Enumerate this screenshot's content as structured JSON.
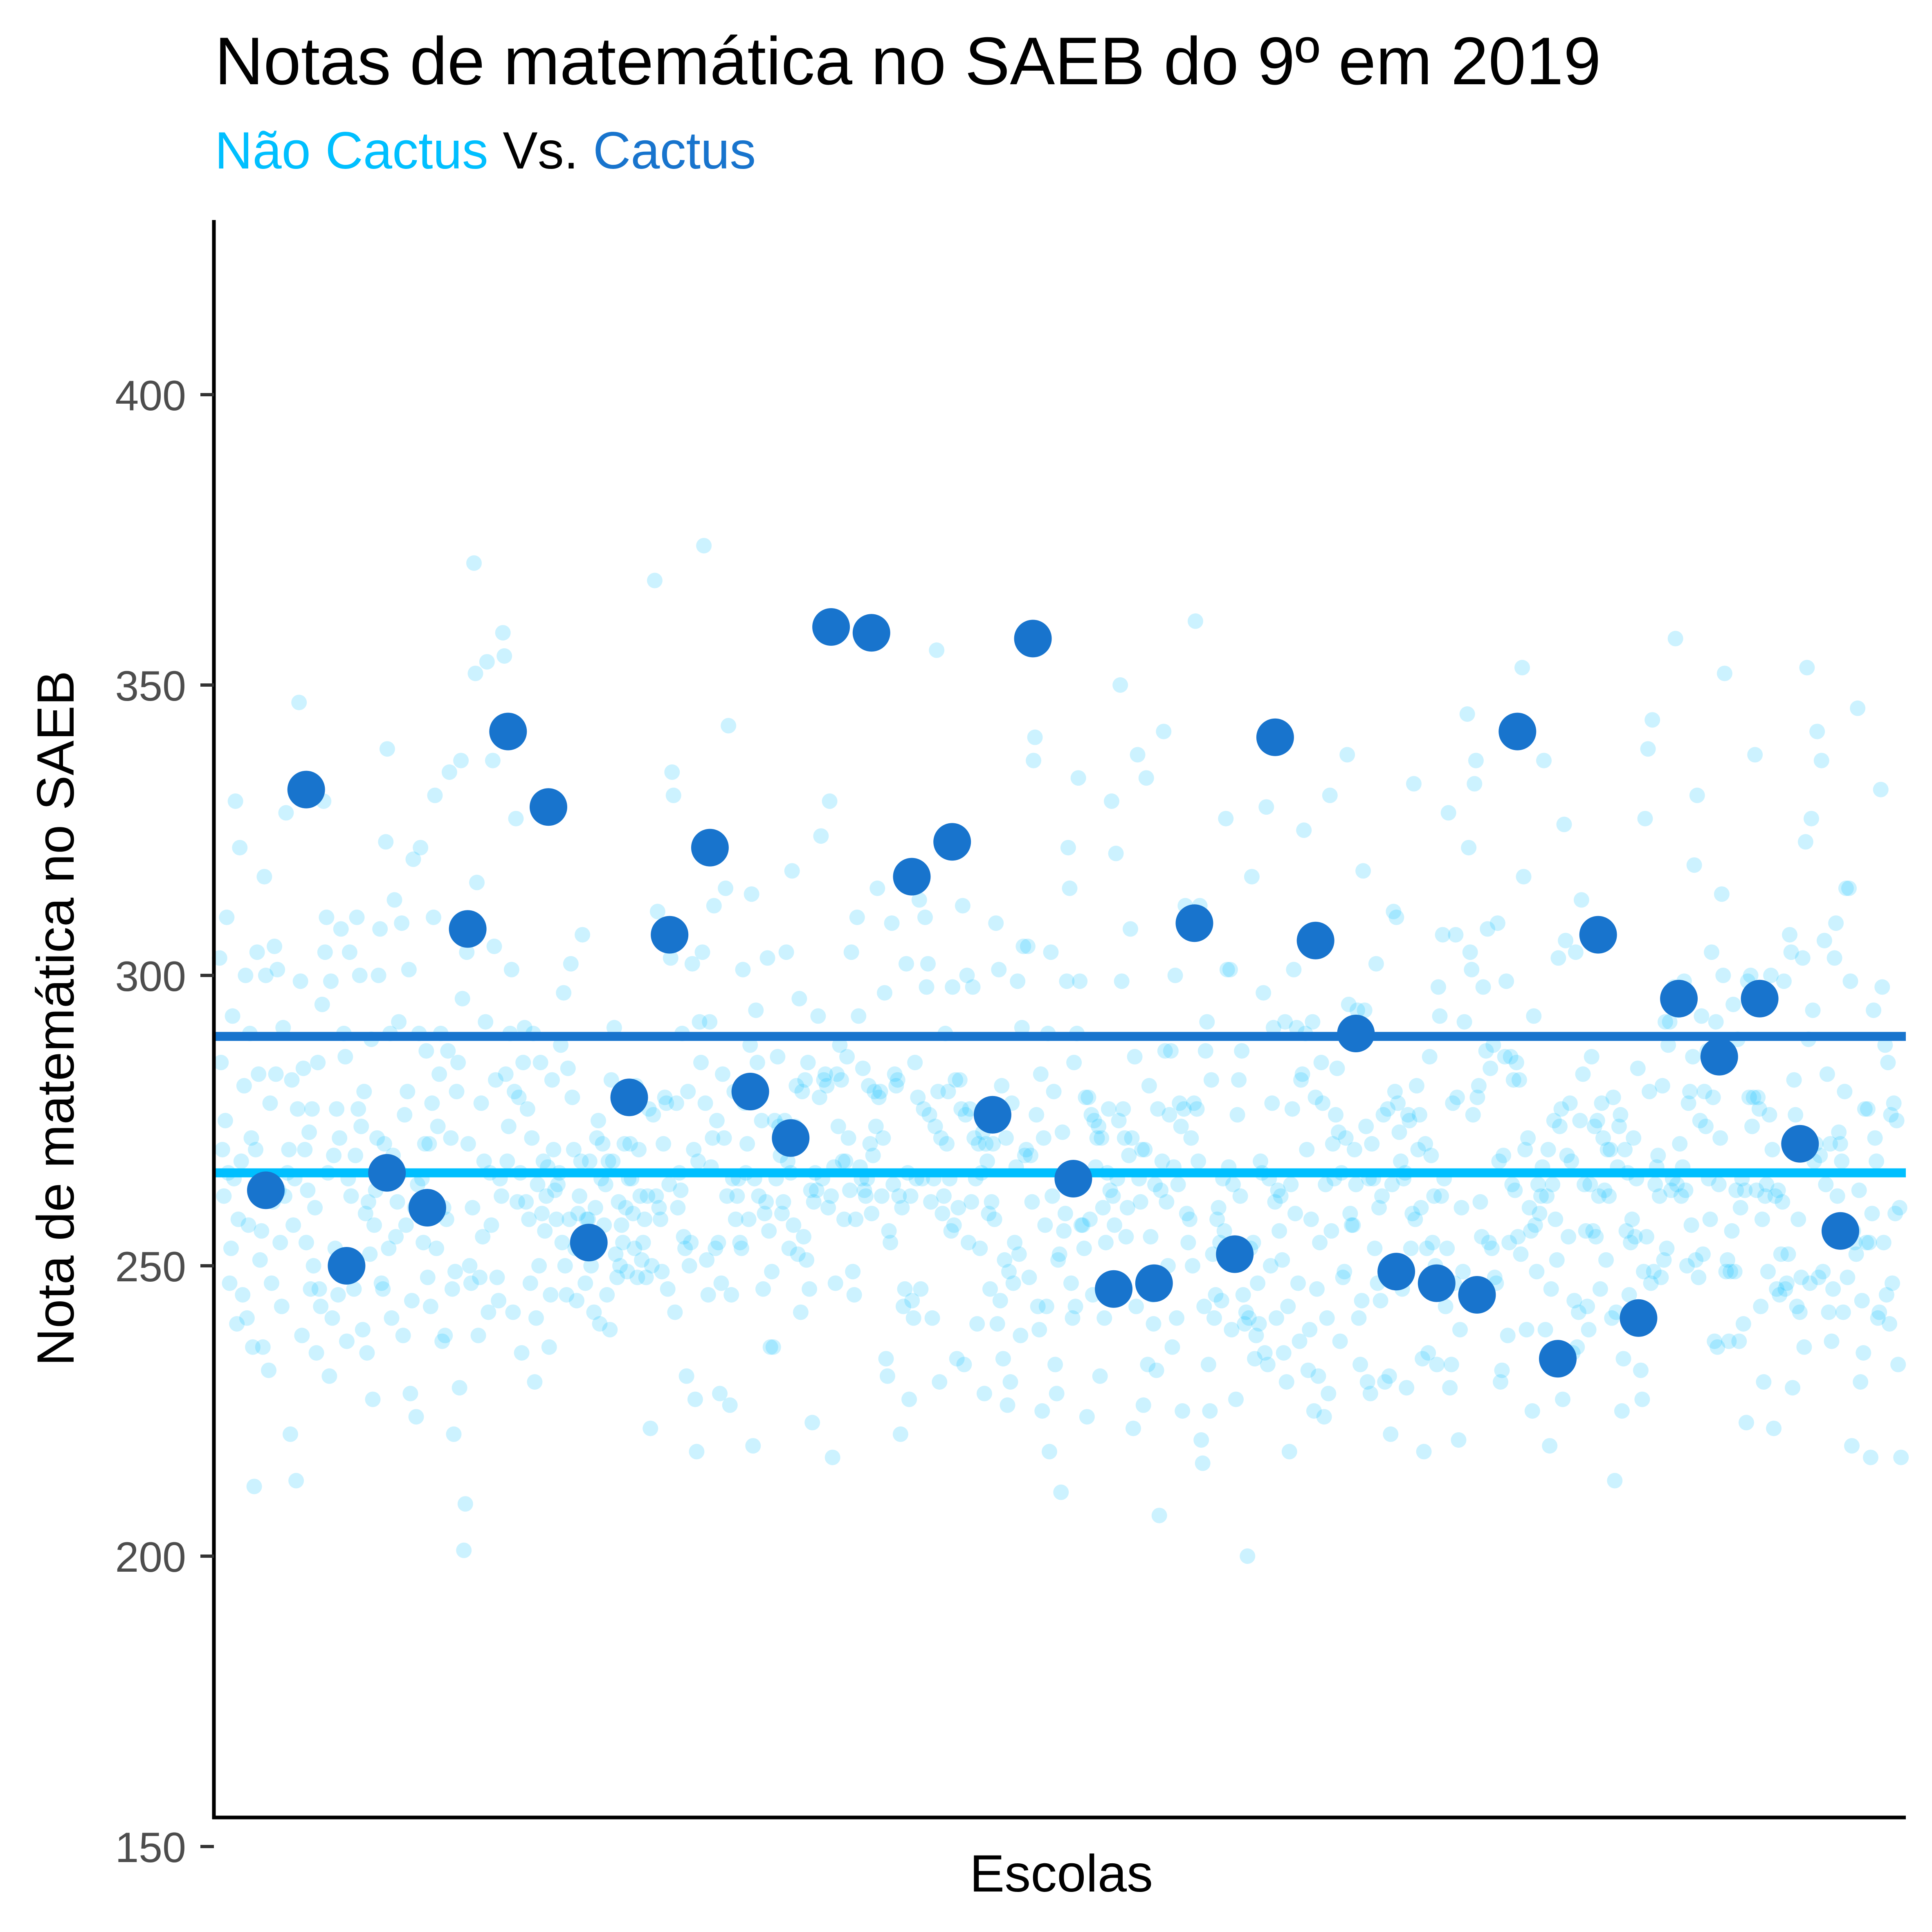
{
  "chart_data": {
    "type": "scatter",
    "title": "Notas de matemática no SAEB do 9º em 2019",
    "subtitle": {
      "part1": "Não Cactus",
      "part2": "Vs.",
      "part3": "Cactus"
    },
    "xlabel": "Escolas",
    "ylabel": "Nota de matemática no SAEB",
    "ylim": [
      136,
      412
    ],
    "yticks": [
      "150",
      "200",
      "250",
      "300",
      "350",
      "400"
    ],
    "grid": false,
    "legend": "none",
    "colors": {
      "nao_cactus": "#00BFFF",
      "cactus": "#1874CD",
      "subtitle_mid": "#000000"
    },
    "series": [
      {
        "name": "Não Cactus",
        "mean": 266,
        "values": [
          303,
          285,
          270,
          262,
          275,
          310,
          266,
          247,
          253,
          293,
          265,
          330,
          240,
          258,
          322,
          268,
          245,
          281,
          300,
          241,
          257,
          290,
          272,
          236,
          212,
          270,
          304,
          283,
          251,
          256,
          236,
          317,
          300,
          264,
          232,
          278,
          247,
          261,
          305,
          283,
          301,
          263,
          254,
          243,
          291,
          262,
          328,
          266,
          270,
          221,
          282,
          257,
          265,
          213,
          277,
          347,
          299,
          238,
          284,
          270,
          254,
          263,
          273,
          246,
          277,
          250,
          260,
          235,
          285,
          246,
          243,
          295,
          330,
          304,
          310,
          266,
          231,
          299,
          241,
          269,
          253,
          277,
          245,
          272,
          308,
          250,
          290,
          286,
          237,
          265,
          304,
          262,
          251,
          246,
          269,
          310,
          277,
          300,
          274,
          239,
          280,
          259,
          235,
          261,
          252,
          289,
          227,
          257,
          263,
          272,
          300,
          308,
          247,
          246,
          271,
          323,
          339,
          253,
          290,
          241,
          269,
          313,
          255,
          261,
          292,
          266,
          309,
          238,
          276,
          257,
          280,
          301,
          228,
          244,
          320,
          260,
          224,
          264,
          290,
          322,
          265,
          254,
          271,
          287,
          248,
          271,
          243,
          278,
          310,
          331,
          253,
          274,
          283,
          290,
          237,
          260,
          238,
          258,
          287,
          335,
          272,
          246,
          221,
          249,
          280,
          285,
          229,
          337,
          296,
          201,
          209,
          304,
          271,
          250,
          247,
          260,
          371,
          352,
          316,
          238,
          248,
          278,
          255,
          268,
          292,
          354,
          242,
          266,
          257,
          337,
          305,
          282,
          248,
          244,
          265,
          262,
          359,
          355,
          283,
          268,
          274,
          290,
          301,
          242,
          280,
          327,
          261,
          279,
          266,
          235,
          285,
          291,
          261,
          277,
          258,
          247,
          272,
          290,
          230,
          241,
          264,
          250,
          285,
          259,
          268,
          256,
          262,
          267,
          236,
          245,
          282,
          270,
          263,
          258,
          264,
          266,
          288,
          254,
          297,
          250,
          245,
          284,
          258,
          302,
          279,
          270,
          253,
          244,
          259,
          262,
          268,
          307,
          254,
          247,
          258,
          258,
          268,
          250,
          255,
          242,
          260,
          272,
          275,
          240,
          265,
          271,
          257,
          264,
          245,
          268,
          239,
          282,
          268,
          291,
          252,
          248,
          261,
          250,
          257,
          254,
          271,
          260,
          249,
          265,
          271,
          265,
          259,
          253,
          281,
          248,
          270,
          262,
          251,
          254,
          258,
          248,
          262,
          277,
          222,
          250,
          276,
          368,
          262,
          311,
          260,
          258,
          249,
          271,
          279,
          278,
          246,
          264,
          303,
          335,
          331,
          242,
          278,
          260,
          266,
          263,
          290,
          255,
          253,
          231,
          280,
          250,
          254,
          302,
          270,
          227,
          218,
          268,
          292,
          285,
          304,
          374,
          278,
          251,
          245,
          292,
          267,
          272,
          312,
          253,
          275,
          254,
          228,
          247,
          283,
          272,
          315,
          262,
          343,
          226,
          245,
          265,
          280,
          258,
          262,
          265,
          254,
          253,
          301,
          278,
          266,
          271,
          258,
          288,
          314,
          219,
          265,
          294,
          285,
          262,
          279,
          275,
          246,
          259,
          261,
          303,
          256,
          236,
          249,
          236,
          275,
          265,
          286,
          274,
          269,
          259,
          261,
          275,
          304,
          268,
          253,
          266,
          318,
          257,
          274,
          281,
          252,
          296,
          242,
          280,
          255,
          282,
          251,
          285,
          246,
          263,
          223,
          261,
          266,
          263,
          293,
          279,
          324,
          265,
          282,
          283,
          281,
          260,
          330,
          262,
          217,
          267,
          247,
          283,
          274,
          288,
          282,
          268,
          258,
          268,
          286,
          272,
          263,
          304,
          249,
          245,
          258,
          310,
          293,
          267,
          265,
          284,
          263,
          262,
          265,
          281,
          271,
          259,
          269,
          280,
          274,
          315,
          279,
          280,
          262,
          272,
          297,
          234,
          231,
          256,
          254,
          309,
          264,
          283,
          281,
          282,
          262,
          221,
          260,
          243,
          246,
          302,
          266,
          227,
          262,
          244,
          241,
          285,
          265,
          279,
          313,
          246,
          265,
          277,
          310,
          298,
          302,
          276,
          261,
          241,
          265,
          274,
          356,
          280,
          230,
          272,
          259,
          262,
          290,
          271,
          280,
          265,
          256,
          298,
          257,
          282,
          234,
          260,
          282,
          277,
          312,
          233,
          276,
          300,
          254,
          277,
          261,
          298,
          272,
          265,
          240,
          271,
          253,
          266,
          273,
          228,
          271,
          268,
          259,
          246,
          261,
          271,
          258,
          309,
          240,
          301,
          244,
          281,
          234,
          251,
          272,
          226,
          249,
          230,
          278,
          247,
          254,
          267,
          299,
          252,
          238,
          291,
          305,
          269,
          270,
          305,
          248,
          269,
          261,
          337,
          341,
          276,
          243,
          239,
          283,
          225,
          272,
          257,
          243,
          290,
          218,
          304,
          262,
          280,
          233,
          228,
          251,
          252,
          211,
          273,
          256,
          259,
          299,
          322,
          315,
          247,
          241,
          285,
          243,
          290,
          334,
          299,
          257,
          257,
          253,
          279,
          224,
          279,
          258,
          276,
          245,
          275,
          267,
          272,
          274,
          231,
          272,
          260,
          241,
          254,
          266,
          277,
          263,
          330,
          262,
          257,
          321,
          265,
          275,
          350,
          299,
          277,
          272,
          255,
          260,
          269,
          308,
          272,
          222,
          286,
          243,
          338,
          265,
          261,
          270,
          226,
          270,
          334,
          233,
          281,
          255,
          245,
          240,
          264,
          232,
          277,
          207,
          263,
          268,
          342,
          287,
          261,
          250,
          276,
          287,
          236,
          267,
          300,
          241,
          264,
          278,
          274,
          225,
          277,
          312,
          259,
          254,
          258,
          272,
          250,
          278,
          361,
          277,
          268,
          312,
          220,
          216,
          243,
          287,
          292,
          233,
          225,
          282,
          252,
          241,
          245,
          258,
          260,
          254,
          244,
          265,
          256,
          327,
          301,
          267,
          301,
          239,
          264,
          253,
          227,
          276,
          282,
          262,
          287,
          245,
          240,
          242,
          200,
          241,
          253,
          317,
          254,
          234,
          238,
          247,
          240,
          268,
          266,
          297,
          235,
          329,
          233,
          265,
          250,
          278,
          291,
          261,
          241,
          263,
          256,
          262,
          251,
          235,
          292,
          230,
          243,
          218,
          264,
          277,
          301,
          259,
          291,
          247,
          237,
          282,
          283,
          325,
          290,
          270,
          232,
          239,
          258,
          292,
          225,
          279,
          246,
          231,
          254,
          285,
          278,
          224,
          264,
          241,
          228,
          331,
          256,
          271,
          265,
          276,
          284,
          273,
          237,
          266,
          248,
          249,
          272,
          338,
          295,
          259,
          257,
          257,
          270,
          264,
          294,
          241,
          233,
          244,
          318,
          294,
          274,
          230,
          265,
          228,
          271,
          265,
          253,
          302,
          247,
          260,
          244,
          262,
          276,
          230,
          250,
          277,
          231,
          221,
          264,
          311,
          280,
          310,
          278,
          273,
          268,
          246,
          265,
          266,
          229,
          276,
          275,
          253,
          259,
          333,
          258,
          281,
          270,
          276,
          260,
          234,
          218,
          271,
          253,
          235,
          286,
          269,
          254,
          262,
          250,
          233,
          298,
          293,
          262,
          307,
          265,
          243,
          253,
          328,
          229,
          233,
          278,
          247,
          307,
          279,
          220,
          239,
          260,
          249,
          292,
          245,
          345,
          322,
          304,
          301,
          276,
          333,
          337,
          279,
          281,
          261,
          255,
          298,
          246,
          287,
          308,
          254,
          284,
          253,
          288,
          248,
          247,
          309,
          268,
          230,
          232,
          269,
          286,
          299,
          238,
          254,
          286,
          264,
          282,
          263,
          285,
          255,
          282,
          252,
          353,
          317,
          270,
          239,
          272,
          260,
          256,
          225,
          293,
          257,
          249,
          264,
          259,
          262,
          267,
          337,
          239,
          262,
          270,
          219,
          246,
          264,
          275,
          258,
          251,
          303,
          274,
          277,
          227,
          326,
          306,
          269,
          255,
          278,
          268,
          235,
          244,
          304,
          236,
          242,
          275,
          313,
          283,
          264,
          256,
          243,
          239,
          264,
          286,
          256,
          274,
          255,
          275,
          262,
          246,
          278,
          272,
          263,
          251,
          270,
          262,
          270,
          241,
          279,
          213,
          242,
          267,
          274,
          276,
          225,
          234,
          270,
          256,
          266,
          245,
          254,
          258,
          272,
          255,
          265,
          284,
          240,
          232,
          227,
          249,
          327,
          255,
          339,
          280,
          247,
          344,
          249,
          264,
          267,
          269,
          262,
          248,
          281,
          251,
          292,
          253,
          288,
          292,
          263,
          265,
          298,
          358,
          264,
          294,
          271,
          262,
          267,
          299,
          263,
          250,
          278,
          280,
          257,
          286,
          319,
          251,
          331,
          248,
          275,
          293,
          252,
          280,
          274,
          287,
          265,
          258,
          304,
          279,
          237,
          292,
          236,
          264,
          272,
          314,
          300,
          352,
          249,
          251,
          237,
          249,
          256,
          295,
          249,
          263,
          289,
          237,
          260,
          265,
          240,
          263,
          223,
          299,
          279,
          300,
          274,
          279,
          338,
          263,
          279,
          277,
          243,
          258,
          230,
          262,
          264,
          249,
          276,
          300,
          270,
          222,
          262,
          246,
          263,
          245,
          252,
          261,
          299,
          246,
          247,
          252,
          307,
          304,
          229,
          282,
          276,
          243,
          258,
          242,
          248,
          303,
          236,
          323,
          353,
          289,
          247,
          327,
          294,
          268,
          271,
          342,
          248,
          269,
          337,
          249,
          306,
          264,
          283,
          242,
          271,
          237,
          246,
          303,
          309,
          262,
          273,
          271,
          268,
          242,
          280,
          315,
          248,
          315,
          299,
          219,
          256,
          254,
          252,
          346,
          263,
          230,
          244,
          235,
          277,
          254,
          277,
          254,
          217,
          259,
          294,
          272,
          268,
          241,
          242,
          332,
          298,
          254,
          288,
          245,
          285,
          240,
          276,
          247,
          278,
          259,
          275,
          233,
          260,
          217
        ]
      },
      {
        "name": "Cactus",
        "mean": 289.5,
        "values": [
          263,
          332,
          250,
          266,
          260,
          308,
          342,
          329,
          254,
          279,
          307,
          322,
          280,
          272,
          360,
          359,
          317,
          323,
          276,
          358,
          265,
          246,
          247,
          309,
          252,
          341,
          306,
          290,
          249,
          247,
          245,
          342,
          234,
          307,
          241,
          296,
          286,
          296,
          271,
          256
        ]
      }
    ]
  }
}
